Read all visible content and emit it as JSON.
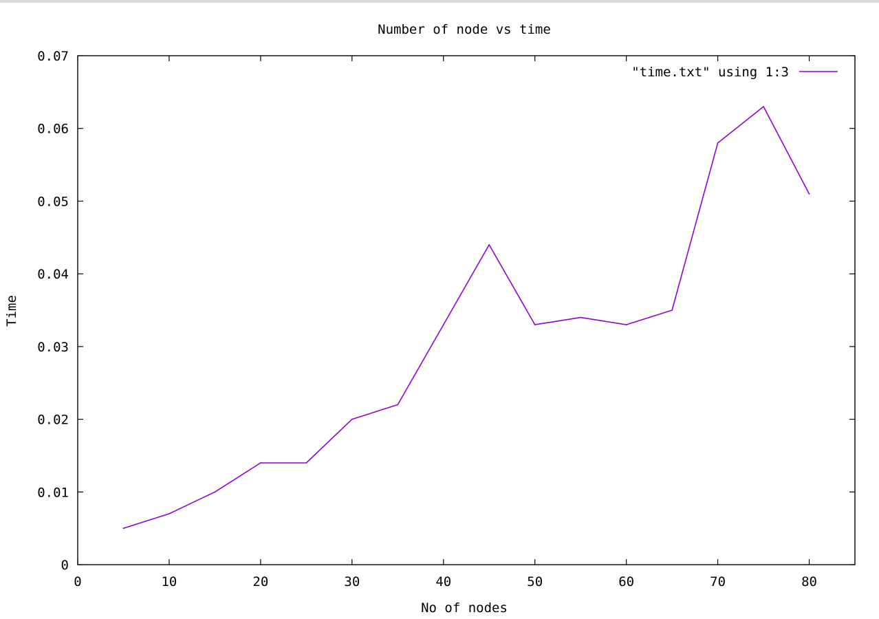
{
  "chart_data": {
    "type": "line",
    "title": "Number of node vs time",
    "xlabel": "No of nodes",
    "ylabel": "Time",
    "xlim": [
      0,
      85
    ],
    "ylim": [
      0,
      0.07
    ],
    "xticks": [
      0,
      10,
      20,
      30,
      40,
      50,
      60,
      70,
      80
    ],
    "xtick_labels": [
      "0",
      "10",
      "20",
      "30",
      "40",
      "50",
      "60",
      "70",
      "80"
    ],
    "yticks": [
      0,
      0.01,
      0.02,
      0.03,
      0.04,
      0.05,
      0.06,
      0.07
    ],
    "ytick_labels": [
      "0",
      "0.01",
      "0.02",
      "0.03",
      "0.04",
      "0.05",
      "0.06",
      "0.07"
    ],
    "grid": false,
    "legend_position": "top-right",
    "series": [
      {
        "name": "\"time.txt\" using 1:3",
        "color": "#9400d3",
        "x": [
          5,
          10,
          15,
          20,
          25,
          30,
          35,
          40,
          45,
          50,
          55,
          60,
          65,
          70,
          75,
          80
        ],
        "y": [
          0.005,
          0.007,
          0.01,
          0.014,
          0.014,
          0.02,
          0.022,
          0.033,
          0.044,
          0.033,
          0.034,
          0.033,
          0.035,
          0.058,
          0.063,
          0.051
        ]
      }
    ]
  }
}
